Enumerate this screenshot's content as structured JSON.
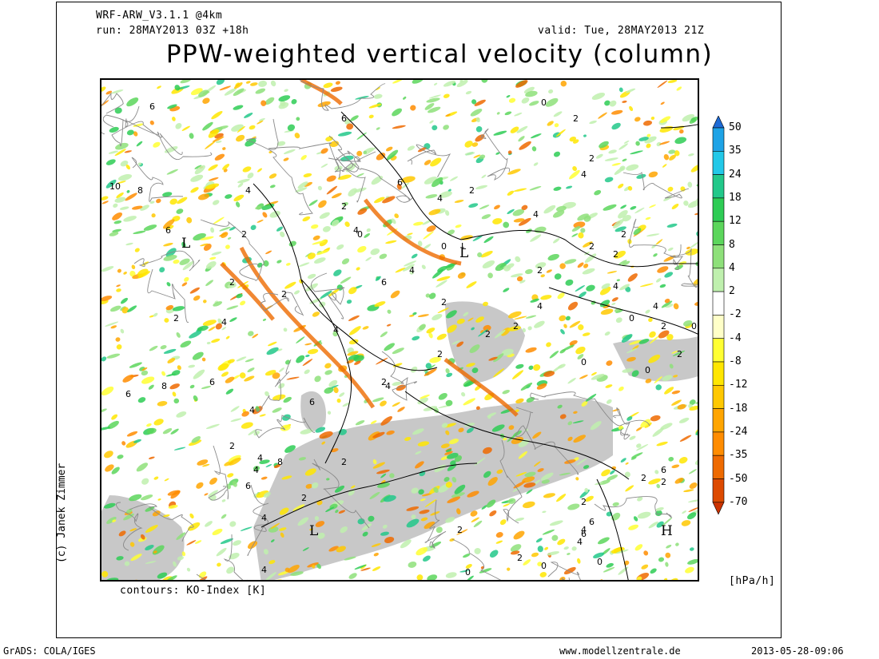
{
  "header": {
    "model": "WRF-ARW_V3.1.1 @4km",
    "run": "run: 28MAY2013 03Z +18h",
    "valid": "valid: Tue, 28MAY2013 21Z",
    "title": "PPW-weighted vertical velocity (column)"
  },
  "footer": {
    "contours": "contours: KO-Index [K]",
    "credit": "(c) Janek Zimmer",
    "grads": "GrADS: COLA/IGES",
    "website": "www.modellzentrale.de",
    "timestamp": "2013-05-28-09:06"
  },
  "colorbar": {
    "unit": "[hPa/h]",
    "labels": [
      "50",
      "35",
      "24",
      "18",
      "12",
      "8",
      "4",
      "2",
      "-2",
      "-4",
      "-8",
      "-12",
      "-18",
      "-24",
      "-35",
      "-50",
      "-70"
    ],
    "colors": [
      "#1e6bd6",
      "#1ea3e6",
      "#22c8e8",
      "#22c88a",
      "#2ecc55",
      "#5cd65c",
      "#8ee07a",
      "#bff0ae",
      "#ffffff",
      "#ffffc8",
      "#ffff33",
      "#ffe600",
      "#ffc800",
      "#ffa500",
      "#ff8c00",
      "#ee6a00",
      "#dd4a00",
      "#cc3300"
    ]
  },
  "map_labels": {
    "pressure": [
      "L",
      "L",
      "L",
      "H"
    ],
    "ko_index": [
      "6",
      "6",
      "10",
      "8",
      "6",
      "4",
      "2",
      "2",
      "4",
      "6",
      "4",
      "2",
      "0",
      "2",
      "2",
      "4",
      "4",
      "2",
      "2",
      "4",
      "2",
      "0",
      "0",
      "L",
      "2",
      "4",
      "2",
      "2",
      "4",
      "6",
      "8",
      "6",
      "4",
      "4",
      "4",
      "2",
      "2",
      "2",
      "0",
      "4",
      "2",
      "2",
      "0",
      "0",
      "2",
      "0",
      "4",
      "6",
      "2",
      "4",
      "2",
      "6",
      "2",
      "4",
      "6",
      "8",
      "4",
      "6",
      "4",
      "0",
      "2",
      "2",
      "2",
      "2",
      "6",
      "4",
      "2",
      "2",
      "0",
      "2",
      "4",
      "6",
      "0"
    ]
  }
}
